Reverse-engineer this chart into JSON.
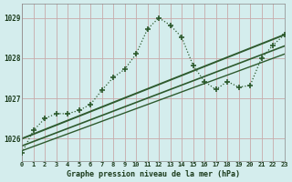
{
  "title": "Graphe pression niveau de la mer (hPa)",
  "bg_color": "#d4eded",
  "label_bg": "#b8d8d8",
  "grid_color": "#c8aaaa",
  "line_color": "#2d5a2d",
  "xlim": [
    0,
    23
  ],
  "ylim": [
    1025.45,
    1029.35
  ],
  "yticks": [
    1026,
    1027,
    1028,
    1029
  ],
  "xticks": [
    0,
    1,
    2,
    3,
    4,
    5,
    6,
    7,
    8,
    9,
    10,
    11,
    12,
    13,
    14,
    15,
    16,
    17,
    18,
    19,
    20,
    21,
    22,
    23
  ],
  "main_x": [
    0,
    1,
    2,
    3,
    4,
    5,
    6,
    7,
    8,
    9,
    10,
    11,
    12,
    13,
    14,
    15,
    16,
    17,
    18,
    19,
    20,
    21,
    22,
    23
  ],
  "main_y": [
    1025.65,
    1026.2,
    1026.5,
    1026.62,
    1026.62,
    1026.7,
    1026.85,
    1027.2,
    1027.52,
    1027.72,
    1028.1,
    1028.72,
    1029.0,
    1028.82,
    1028.52,
    1027.82,
    1027.42,
    1027.22,
    1027.42,
    1027.28,
    1027.32,
    1028.0,
    1028.32,
    1028.58
  ],
  "trend1_x": [
    0,
    23
  ],
  "trend1_y": [
    1026.0,
    1028.58
  ],
  "trend2_x": [
    0,
    23
  ],
  "trend2_y": [
    1025.82,
    1028.3
  ],
  "trend3_x": [
    0,
    23
  ],
  "trend3_y": [
    1025.7,
    1028.1
  ]
}
